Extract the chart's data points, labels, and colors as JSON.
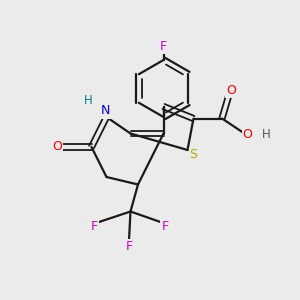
{
  "bg_color": "#ebebeb",
  "bond_color": "#1a1a1a",
  "atom_colors": {
    "F": "#cc00cc",
    "N": "#0000ee",
    "H": "#008080",
    "O": "#ee0000",
    "S": "#bbaa00"
  },
  "figsize": [
    3.0,
    3.0
  ],
  "dpi": 100
}
